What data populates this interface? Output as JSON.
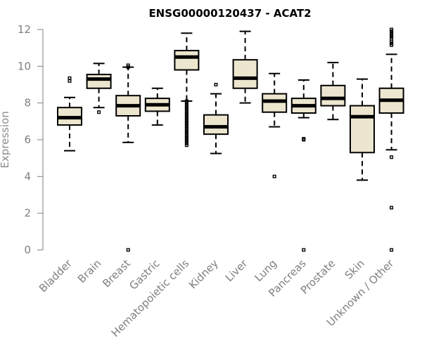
{
  "chart_data": {
    "type": "box",
    "title": "ENSG00000120437 - ACAT2",
    "ylabel": "Expression",
    "xlabel": "",
    "ylim": [
      0,
      12
    ],
    "yticks": [
      0,
      2,
      4,
      6,
      8,
      10,
      12
    ],
    "grid": false,
    "colors": {
      "box_fill": "#ede6cf",
      "stroke": "#000000",
      "axis": "#7f7f7f"
    },
    "categories": [
      "Bladder",
      "Brain",
      "Breast",
      "Gastric",
      "Hematopoietic cells",
      "Kidney",
      "Liver",
      "Lung",
      "Pancreas",
      "Prostate",
      "Skin",
      "Unknown / Other"
    ],
    "boxes": [
      {
        "min": 5.4,
        "q1": 6.8,
        "median": 7.2,
        "q3": 7.75,
        "max": 8.3,
        "outliers": [
          9.2,
          9.35
        ]
      },
      {
        "min": 7.75,
        "q1": 8.8,
        "median": 9.3,
        "q3": 9.55,
        "max": 10.15,
        "outliers": [
          7.5
        ]
      },
      {
        "min": 5.85,
        "q1": 7.3,
        "median": 7.85,
        "q3": 8.4,
        "max": 9.95,
        "outliers": [
          0,
          9.95,
          10.05
        ]
      },
      {
        "min": 6.8,
        "q1": 7.55,
        "median": 7.9,
        "q3": 8.25,
        "max": 8.8,
        "outliers": []
      },
      {
        "min": 8.1,
        "q1": 9.8,
        "median": 10.5,
        "q3": 10.85,
        "max": 11.8,
        "outliers": [
          5.7,
          5.8,
          5.9,
          6.0,
          6.1,
          6.2,
          6.3,
          6.4,
          6.5,
          6.6,
          6.7,
          6.8,
          6.9,
          7.0,
          7.1,
          7.2,
          7.3,
          7.4,
          7.5,
          7.6,
          7.7,
          7.8,
          7.9,
          8.0,
          8.1
        ]
      },
      {
        "min": 5.25,
        "q1": 6.3,
        "median": 6.7,
        "q3": 7.35,
        "max": 8.5,
        "outliers": [
          9.0
        ]
      },
      {
        "min": 8.0,
        "q1": 8.8,
        "median": 9.35,
        "q3": 10.35,
        "max": 11.9,
        "outliers": []
      },
      {
        "min": 6.7,
        "q1": 7.5,
        "median": 8.1,
        "q3": 8.5,
        "max": 9.6,
        "outliers": [
          4.0
        ]
      },
      {
        "min": 7.2,
        "q1": 7.45,
        "median": 7.85,
        "q3": 8.25,
        "max": 9.25,
        "outliers": [
          0,
          6.0,
          6.05
        ]
      },
      {
        "min": 7.1,
        "q1": 7.85,
        "median": 8.25,
        "q3": 8.95,
        "max": 10.2,
        "outliers": []
      },
      {
        "min": 3.8,
        "q1": 5.3,
        "median": 7.25,
        "q3": 7.85,
        "max": 9.3,
        "outliers": []
      },
      {
        "min": 5.45,
        "q1": 7.45,
        "median": 8.15,
        "q3": 8.8,
        "max": 10.65,
        "outliers": [
          0,
          2.3,
          5.05,
          11.15,
          11.25,
          11.35,
          11.5,
          11.6,
          11.7,
          11.8,
          11.9,
          12.0
        ]
      }
    ]
  }
}
